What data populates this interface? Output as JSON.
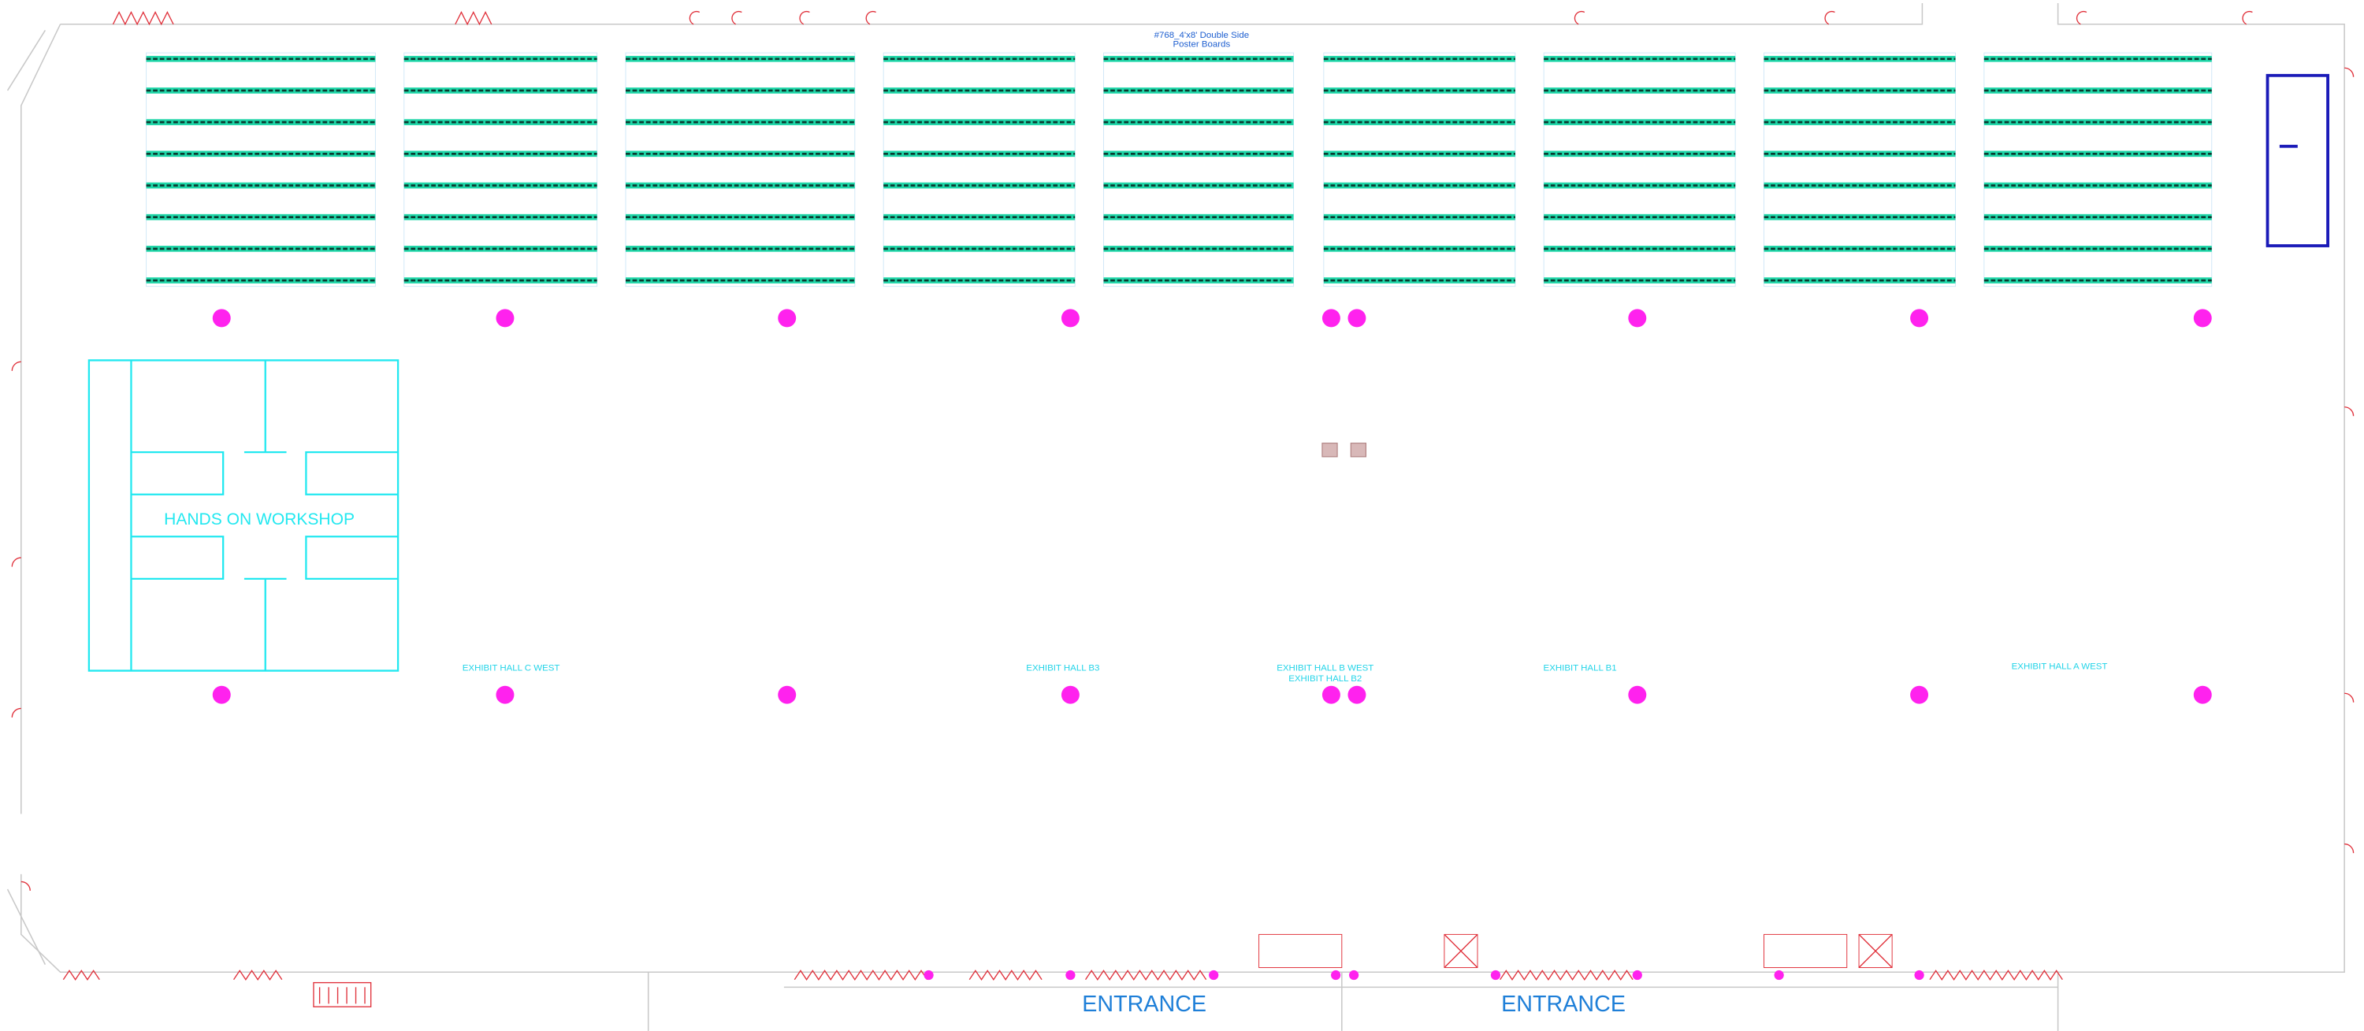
{
  "poster_note": {
    "line1": "#768_4'x8' Double Side",
    "line2": "Poster Boards"
  },
  "workshop": {
    "label": "HANDS ON WORKSHOP"
  },
  "hall_labels": [
    "EXHIBIT HALL C WEST",
    "EXHIBIT HALL B3",
    "EXHIBIT HALL B WEST",
    "EXHIBIT HALL B2",
    "EXHIBIT HALL B1",
    "EXHIBIT HALL A WEST"
  ],
  "entrances": [
    "ENTRANCE",
    "ENTRANCE"
  ]
}
